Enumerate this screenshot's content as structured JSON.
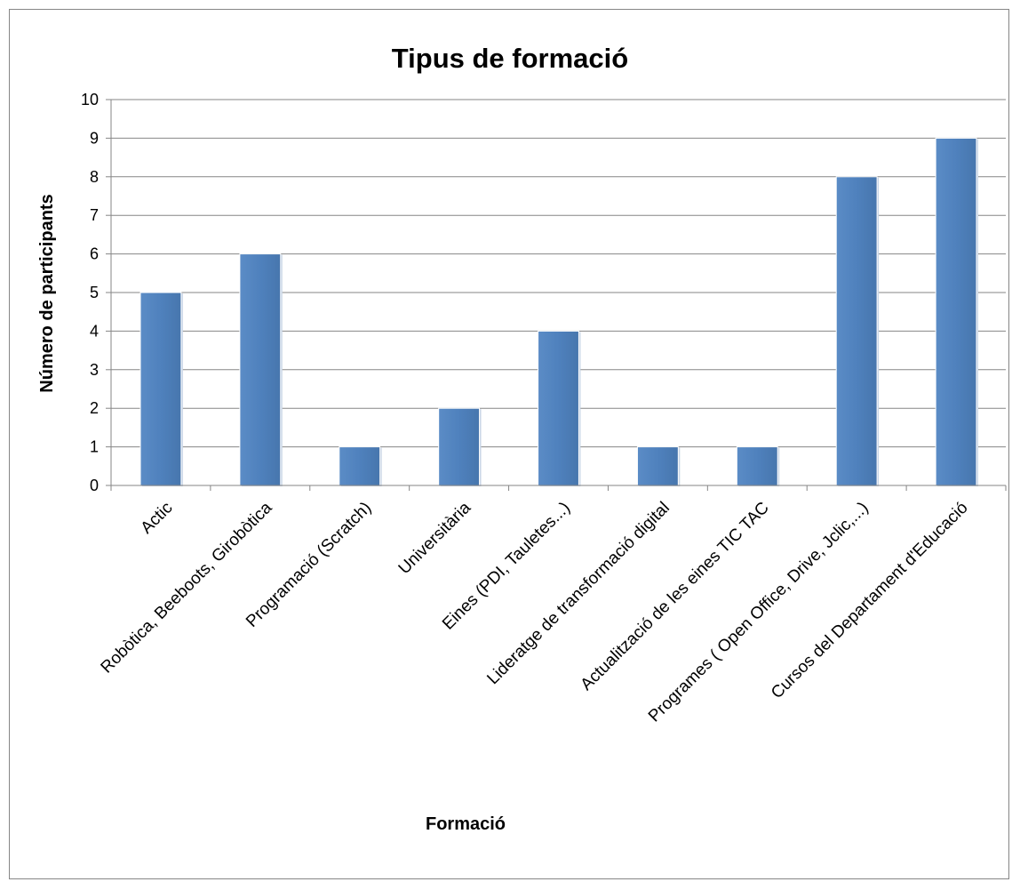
{
  "chart_data": {
    "type": "bar",
    "title": "Tipus de formació",
    "xlabel": "Formació",
    "ylabel": "Número de participants",
    "categories": [
      "Actic",
      "Robòtica, Beeboots, Girobòtica",
      "Programació (Scratch)",
      "Universitària",
      "Eines (PDI, Tauletes...)",
      "Lideratge de transformació digital",
      "Actualització de les eines TIC TAC",
      "Programes ( Open Office, Drive, Jclic,...)",
      "Cursos del Departament d'Educació"
    ],
    "values": [
      5,
      6,
      1,
      2,
      4,
      1,
      1,
      8,
      9
    ],
    "ylim": [
      0,
      10
    ],
    "yticks": [
      "0",
      "1",
      "2",
      "3",
      "4",
      "5",
      "6",
      "7",
      "8",
      "9",
      "10"
    ],
    "grid": true,
    "legend": "none",
    "colors": {
      "bar": "#4f81bd",
      "grid": "#868686",
      "axis": "#868686"
    }
  }
}
